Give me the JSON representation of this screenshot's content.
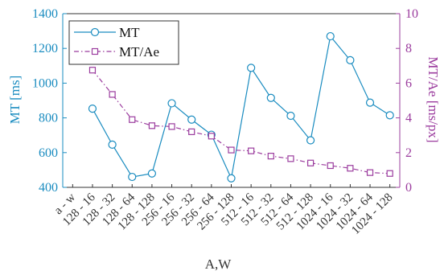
{
  "chart_data": {
    "type": "line",
    "xlabel": "A,W",
    "categories": [
      "a - w",
      "128 - 16",
      "128 - 32",
      "128 - 64",
      "128 - 128",
      "256 - 16",
      "256 - 32",
      "256 - 64",
      "256 - 128",
      "512 - 16",
      "512 - 32",
      "512 - 64",
      "512 - 128",
      "1024 - 16",
      "1024 - 32",
      "1024 - 64",
      "1024 - 128"
    ],
    "y_left": {
      "label": "MT [ms]",
      "lim": [
        400,
        1400
      ],
      "ticks": [
        "400",
        "600",
        "800",
        "1000",
        "1200",
        "1400"
      ],
      "color": "#1a8cc0"
    },
    "y_right": {
      "label": "MT/Ae [ms/px]",
      "lim": [
        0,
        10
      ],
      "ticks": [
        "0",
        "2",
        "4",
        "6",
        "8",
        "10"
      ],
      "color": "#9b3c9e"
    },
    "series": [
      {
        "name": "MT",
        "axis": "left",
        "marker": "circle",
        "line": "solid",
        "color": "#1a8cc0",
        "values": [
          null,
          853,
          646,
          460,
          480,
          884,
          790,
          703,
          452,
          1088,
          915,
          812,
          671,
          1270,
          1132,
          888,
          815
        ]
      },
      {
        "name": "MT/Ae",
        "axis": "right",
        "marker": "square",
        "line": "dashdot",
        "color": "#9b3c9e",
        "values": [
          null,
          6.75,
          5.35,
          3.9,
          3.55,
          3.5,
          3.2,
          2.95,
          2.15,
          2.1,
          1.8,
          1.65,
          1.4,
          1.25,
          1.1,
          0.85,
          0.8
        ]
      }
    ],
    "grid": false,
    "legend_position": "top-left"
  }
}
